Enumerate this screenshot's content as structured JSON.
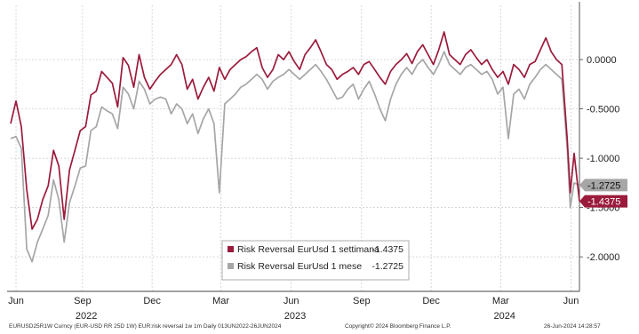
{
  "chart_data": {
    "type": "line",
    "title": "",
    "xlabel": "",
    "ylabel": "",
    "x_range": [
      "2022-06-13",
      "2024-06-26"
    ],
    "ylim": [
      -2.35,
      0.55
    ],
    "y_ticks": [
      0,
      -0.5,
      -1,
      -1.5,
      -2
    ],
    "y_tick_labels": [
      "0.0000",
      "-0.5000",
      "-1.0000",
      "-1.5000",
      "-2.0000"
    ],
    "grid": true,
    "legend_position": "bottom-center",
    "x_month_ticks": [
      {
        "date": "2022-06-20",
        "label": "Jun"
      },
      {
        "date": "2022-09-15",
        "label": "Sep"
      },
      {
        "date": "2022-12-15",
        "label": "Dec"
      },
      {
        "date": "2023-03-15",
        "label": "Mar"
      },
      {
        "date": "2023-06-15",
        "label": "Jun"
      },
      {
        "date": "2023-09-15",
        "label": "Sep"
      },
      {
        "date": "2023-12-15",
        "label": "Dec"
      },
      {
        "date": "2024-03-15",
        "label": "Mar"
      },
      {
        "date": "2024-06-15",
        "label": "Jun"
      }
    ],
    "x_year_labels": [
      {
        "date": "2022-09-20",
        "label": "2022"
      },
      {
        "date": "2023-06-20",
        "label": "2023"
      },
      {
        "date": "2024-03-20",
        "label": "2024"
      }
    ],
    "series": [
      {
        "name": "Risk Reversal EurUsd 1 settimana",
        "last_value": "-1.4375",
        "color": "#9b1b3c",
        "points": [
          [
            "2022-06-13",
            -0.65
          ],
          [
            "2022-06-20",
            -0.42
          ],
          [
            "2022-06-27",
            -0.68
          ],
          [
            "2022-07-04",
            -1.32
          ],
          [
            "2022-07-11",
            -1.72
          ],
          [
            "2022-07-18",
            -1.62
          ],
          [
            "2022-07-25",
            -1.42
          ],
          [
            "2022-08-01",
            -1.28
          ],
          [
            "2022-08-08",
            -0.92
          ],
          [
            "2022-08-15",
            -1.08
          ],
          [
            "2022-08-22",
            -1.62
          ],
          [
            "2022-08-29",
            -1.12
          ],
          [
            "2022-09-05",
            -0.92
          ],
          [
            "2022-09-12",
            -0.72
          ],
          [
            "2022-09-19",
            -0.68
          ],
          [
            "2022-09-26",
            -0.36
          ],
          [
            "2022-10-03",
            -0.32
          ],
          [
            "2022-10-10",
            -0.12
          ],
          [
            "2022-10-17",
            -0.18
          ],
          [
            "2022-10-24",
            -0.24
          ],
          [
            "2022-10-31",
            -0.48
          ],
          [
            "2022-11-07",
            0.02
          ],
          [
            "2022-11-14",
            -0.06
          ],
          [
            "2022-11-21",
            -0.28
          ],
          [
            "2022-11-28",
            0.05
          ],
          [
            "2022-12-05",
            -0.18
          ],
          [
            "2022-12-12",
            -0.3
          ],
          [
            "2022-12-19",
            -0.22
          ],
          [
            "2022-12-26",
            -0.15
          ],
          [
            "2023-01-02",
            -0.1
          ],
          [
            "2023-01-09",
            -0.05
          ],
          [
            "2023-01-16",
            0.05
          ],
          [
            "2023-01-23",
            -0.05
          ],
          [
            "2023-01-30",
            -0.3
          ],
          [
            "2023-02-06",
            -0.2
          ],
          [
            "2023-02-13",
            -0.4
          ],
          [
            "2023-02-20",
            -0.28
          ],
          [
            "2023-02-27",
            -0.18
          ],
          [
            "2023-03-06",
            -0.32
          ],
          [
            "2023-03-13",
            -0.08
          ],
          [
            "2023-03-20",
            -0.2
          ],
          [
            "2023-03-27",
            -0.1
          ],
          [
            "2023-04-03",
            -0.05
          ],
          [
            "2023-04-10",
            0.0
          ],
          [
            "2023-04-17",
            0.03
          ],
          [
            "2023-04-24",
            0.08
          ],
          [
            "2023-05-01",
            0.12
          ],
          [
            "2023-05-08",
            -0.08
          ],
          [
            "2023-05-15",
            -0.18
          ],
          [
            "2023-05-22",
            -0.1
          ],
          [
            "2023-05-29",
            0.05
          ],
          [
            "2023-06-05",
            0.0
          ],
          [
            "2023-06-12",
            0.08
          ],
          [
            "2023-06-19",
            -0.02
          ],
          [
            "2023-06-26",
            -0.1
          ],
          [
            "2023-07-03",
            0.05
          ],
          [
            "2023-07-10",
            0.12
          ],
          [
            "2023-07-17",
            0.2
          ],
          [
            "2023-07-24",
            0.08
          ],
          [
            "2023-07-31",
            -0.05
          ],
          [
            "2023-08-07",
            -0.1
          ],
          [
            "2023-08-14",
            -0.2
          ],
          [
            "2023-08-21",
            -0.15
          ],
          [
            "2023-08-28",
            -0.12
          ],
          [
            "2023-09-04",
            -0.08
          ],
          [
            "2023-09-11",
            -0.15
          ],
          [
            "2023-09-18",
            -0.05
          ],
          [
            "2023-09-25",
            -0.02
          ],
          [
            "2023-10-02",
            -0.1
          ],
          [
            "2023-10-09",
            -0.18
          ],
          [
            "2023-10-16",
            -0.25
          ],
          [
            "2023-10-23",
            -0.12
          ],
          [
            "2023-10-30",
            -0.05
          ],
          [
            "2023-11-06",
            0.0
          ],
          [
            "2023-11-13",
            0.06
          ],
          [
            "2023-11-20",
            -0.04
          ],
          [
            "2023-11-27",
            0.08
          ],
          [
            "2023-12-04",
            0.15
          ],
          [
            "2023-12-11",
            0.05
          ],
          [
            "2023-12-18",
            -0.05
          ],
          [
            "2023-12-25",
            0.1
          ],
          [
            "2024-01-01",
            0.28
          ],
          [
            "2024-01-08",
            0.05
          ],
          [
            "2024-01-15",
            0.0
          ],
          [
            "2024-01-22",
            -0.05
          ],
          [
            "2024-01-29",
            0.05
          ],
          [
            "2024-02-05",
            0.1
          ],
          [
            "2024-02-12",
            0.02
          ],
          [
            "2024-02-19",
            -0.05
          ],
          [
            "2024-02-26",
            0.0
          ],
          [
            "2024-03-04",
            -0.1
          ],
          [
            "2024-03-11",
            -0.18
          ],
          [
            "2024-03-18",
            -0.12
          ],
          [
            "2024-03-25",
            -0.25
          ],
          [
            "2024-04-01",
            -0.05
          ],
          [
            "2024-04-08",
            -0.1
          ],
          [
            "2024-04-15",
            -0.18
          ],
          [
            "2024-04-22",
            -0.05
          ],
          [
            "2024-04-29",
            -0.02
          ],
          [
            "2024-05-06",
            0.1
          ],
          [
            "2024-05-13",
            0.22
          ],
          [
            "2024-05-20",
            0.08
          ],
          [
            "2024-05-27",
            0.0
          ],
          [
            "2024-06-03",
            -0.05
          ],
          [
            "2024-06-10",
            -0.8
          ],
          [
            "2024-06-14",
            -1.35
          ],
          [
            "2024-06-19",
            -0.95
          ],
          [
            "2024-06-26",
            -1.4375
          ]
        ]
      },
      {
        "name": "Risk Reversal EurUsd 1 mese",
        "last_value": "-1.2725",
        "color": "#a6a6a6",
        "points": [
          [
            "2022-06-13",
            -0.8
          ],
          [
            "2022-06-20",
            -0.78
          ],
          [
            "2022-06-27",
            -0.9
          ],
          [
            "2022-07-04",
            -1.92
          ],
          [
            "2022-07-11",
            -2.05
          ],
          [
            "2022-07-18",
            -1.85
          ],
          [
            "2022-07-25",
            -1.72
          ],
          [
            "2022-08-01",
            -1.58
          ],
          [
            "2022-08-08",
            -1.22
          ],
          [
            "2022-08-15",
            -1.42
          ],
          [
            "2022-08-22",
            -1.85
          ],
          [
            "2022-08-29",
            -1.45
          ],
          [
            "2022-09-05",
            -1.28
          ],
          [
            "2022-09-12",
            -1.1
          ],
          [
            "2022-09-19",
            -1.08
          ],
          [
            "2022-09-26",
            -0.72
          ],
          [
            "2022-10-03",
            -0.68
          ],
          [
            "2022-10-10",
            -0.48
          ],
          [
            "2022-10-17",
            -0.52
          ],
          [
            "2022-10-24",
            -0.55
          ],
          [
            "2022-10-31",
            -0.7
          ],
          [
            "2022-11-07",
            -0.28
          ],
          [
            "2022-11-14",
            -0.35
          ],
          [
            "2022-11-21",
            -0.5
          ],
          [
            "2022-11-28",
            -0.22
          ],
          [
            "2022-12-05",
            -0.3
          ],
          [
            "2022-12-12",
            -0.45
          ],
          [
            "2022-12-19",
            -0.4
          ],
          [
            "2022-12-26",
            -0.38
          ],
          [
            "2023-01-02",
            -0.4
          ],
          [
            "2023-01-09",
            -0.55
          ],
          [
            "2023-01-16",
            -0.45
          ],
          [
            "2023-01-23",
            -0.5
          ],
          [
            "2023-01-30",
            -0.65
          ],
          [
            "2023-02-06",
            -0.55
          ],
          [
            "2023-02-13",
            -0.75
          ],
          [
            "2023-02-20",
            -0.6
          ],
          [
            "2023-02-27",
            -0.5
          ],
          [
            "2023-03-06",
            -0.65
          ],
          [
            "2023-03-13",
            -1.35
          ],
          [
            "2023-03-20",
            -0.45
          ],
          [
            "2023-03-27",
            -0.4
          ],
          [
            "2023-04-03",
            -0.35
          ],
          [
            "2023-04-10",
            -0.28
          ],
          [
            "2023-04-17",
            -0.25
          ],
          [
            "2023-04-24",
            -0.2
          ],
          [
            "2023-05-01",
            -0.15
          ],
          [
            "2023-05-08",
            -0.2
          ],
          [
            "2023-05-15",
            -0.3
          ],
          [
            "2023-05-22",
            -0.22
          ],
          [
            "2023-05-29",
            -0.18
          ],
          [
            "2023-06-05",
            -0.15
          ],
          [
            "2023-06-12",
            -0.1
          ],
          [
            "2023-06-19",
            -0.15
          ],
          [
            "2023-06-26",
            -0.2
          ],
          [
            "2023-07-03",
            -0.15
          ],
          [
            "2023-07-10",
            -0.1
          ],
          [
            "2023-07-17",
            -0.05
          ],
          [
            "2023-07-24",
            -0.12
          ],
          [
            "2023-07-31",
            -0.2
          ],
          [
            "2023-08-07",
            -0.3
          ],
          [
            "2023-08-14",
            -0.4
          ],
          [
            "2023-08-21",
            -0.38
          ],
          [
            "2023-08-28",
            -0.3
          ],
          [
            "2023-09-04",
            -0.25
          ],
          [
            "2023-09-11",
            -0.4
          ],
          [
            "2023-09-18",
            -0.3
          ],
          [
            "2023-09-25",
            -0.22
          ],
          [
            "2023-10-02",
            -0.35
          ],
          [
            "2023-10-09",
            -0.5
          ],
          [
            "2023-10-16",
            -0.62
          ],
          [
            "2023-10-23",
            -0.4
          ],
          [
            "2023-10-30",
            -0.25
          ],
          [
            "2023-11-06",
            -0.15
          ],
          [
            "2023-11-13",
            -0.08
          ],
          [
            "2023-11-20",
            -0.15
          ],
          [
            "2023-11-27",
            -0.05
          ],
          [
            "2023-12-04",
            0.0
          ],
          [
            "2023-12-11",
            -0.08
          ],
          [
            "2023-12-18",
            -0.15
          ],
          [
            "2023-12-25",
            -0.05
          ],
          [
            "2024-01-01",
            0.08
          ],
          [
            "2024-01-08",
            -0.05
          ],
          [
            "2024-01-15",
            -0.1
          ],
          [
            "2024-01-22",
            -0.15
          ],
          [
            "2024-01-29",
            -0.08
          ],
          [
            "2024-02-05",
            -0.05
          ],
          [
            "2024-02-12",
            -0.1
          ],
          [
            "2024-02-19",
            -0.15
          ],
          [
            "2024-02-26",
            -0.12
          ],
          [
            "2024-03-04",
            -0.2
          ],
          [
            "2024-03-11",
            -0.35
          ],
          [
            "2024-03-18",
            -0.28
          ],
          [
            "2024-03-25",
            -0.8
          ],
          [
            "2024-04-01",
            -0.35
          ],
          [
            "2024-04-08",
            -0.3
          ],
          [
            "2024-04-15",
            -0.4
          ],
          [
            "2024-04-22",
            -0.25
          ],
          [
            "2024-04-29",
            -0.18
          ],
          [
            "2024-05-06",
            -0.1
          ],
          [
            "2024-05-13",
            -0.05
          ],
          [
            "2024-05-20",
            -0.1
          ],
          [
            "2024-05-27",
            -0.15
          ],
          [
            "2024-06-03",
            -0.2
          ],
          [
            "2024-06-10",
            -0.9
          ],
          [
            "2024-06-14",
            -1.5
          ],
          [
            "2024-06-19",
            -1.25
          ],
          [
            "2024-06-26",
            -1.2725
          ]
        ]
      }
    ]
  },
  "footer": {
    "left": "EURUSD25R1W Curncy (EUR-USD RR 25D 1W) EUR:risk reversal 1w 1m  Daily 013UN2022-26JUN2024",
    "center": "Copyright© 2024 Bloomberg Finance L.P.",
    "right": "26-Jun-2024 14:28:57"
  }
}
